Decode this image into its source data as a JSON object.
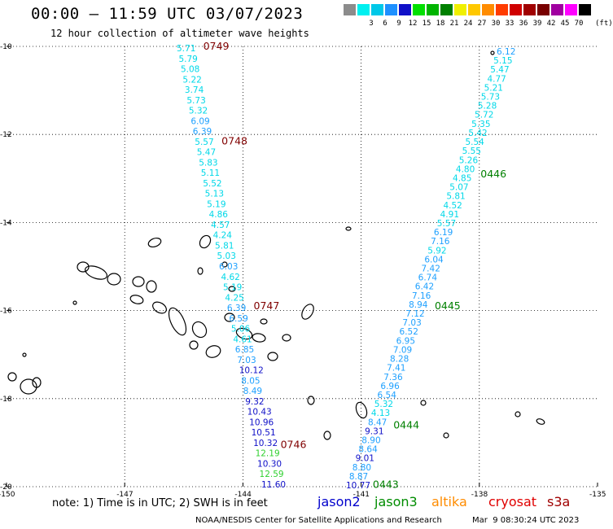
{
  "header": {
    "title": "00:00 – 11:59 UTC 03/07/2023",
    "subtitle": "12 hour collection of altimeter wave heights"
  },
  "color_scale": {
    "unit": "(ft)",
    "bins": [
      {
        "label": "",
        "color": "#8c8c8c"
      },
      {
        "label": "3",
        "color": "#00f0f0"
      },
      {
        "label": "6",
        "color": "#00c8e8"
      },
      {
        "label": "9",
        "color": "#1e90ff"
      },
      {
        "label": "12",
        "color": "#1010c8"
      },
      {
        "label": "15",
        "color": "#00e000"
      },
      {
        "label": "18",
        "color": "#00b400"
      },
      {
        "label": "21",
        "color": "#008000"
      },
      {
        "label": "24",
        "color": "#f0f000"
      },
      {
        "label": "27",
        "color": "#ffc800"
      },
      {
        "label": "30",
        "color": "#ff8c00"
      },
      {
        "label": "33",
        "color": "#ff3c00"
      },
      {
        "label": "36",
        "color": "#d00000"
      },
      {
        "label": "39",
        "color": "#a00000"
      },
      {
        "label": "42",
        "color": "#780000"
      },
      {
        "label": "45",
        "color": "#a000a0"
      },
      {
        "label": "70",
        "color": "#ff00ff"
      },
      {
        "label": "",
        "color": "#000000"
      }
    ]
  },
  "axes": {
    "lat_ticks": [
      "-10",
      "-12",
      "-14",
      "-16",
      "-18",
      "-20"
    ],
    "lon_ticks": [
      "-150",
      "-147",
      "-144",
      "-141",
      "-138",
      "-135"
    ]
  },
  "track_west": {
    "values": [
      "5.71",
      "5.79",
      "5.08",
      "5.22",
      "3.74",
      "5.73",
      "5.32",
      "6.09",
      "6.39",
      "5.57",
      "5.47",
      "5.83",
      "5.11",
      "5.52",
      "5.13",
      "5.19",
      "4.86",
      "4.57",
      "4.24",
      "5.81",
      "5.03",
      "6.03",
      "4.62",
      "5.19",
      "4.25",
      "6.39",
      "6.59",
      "5.06",
      "4.61",
      "6.85",
      "7.03",
      "10.12",
      "8.05",
      "8.49",
      "9.32",
      "10.43",
      "10.96",
      "10.51",
      "10.32",
      "12.19",
      "10.30",
      "12.59",
      "11.60"
    ],
    "passes": [
      "0749",
      "0748",
      "0747",
      "0746"
    ]
  },
  "track_east": {
    "values": [
      "6.12",
      "5.15",
      "5.47",
      "4.77",
      "5.21",
      "5.73",
      "5.28",
      "5.72",
      "5.35",
      "5.42",
      "5.54",
      "5.55",
      "5.26",
      "4.80",
      "4.85",
      "5.07",
      "5.81",
      "4.52",
      "4.91",
      "5.57",
      "6.19",
      "7.16",
      "5.92",
      "6.04",
      "7.42",
      "6.74",
      "6.42",
      "7.16",
      "8.94",
      "7.12",
      "7.03",
      "6.52",
      "6.95",
      "7.09",
      "8.28",
      "7.41",
      "7.36",
      "6.96",
      "6.54",
      "5.32",
      "4.13",
      "8.47",
      "9.31",
      "8.90",
      "8.64",
      "9.01",
      "8.80",
      "8.87",
      "10.77"
    ],
    "passes": [
      "0446",
      "0445",
      "0444",
      "0443"
    ]
  },
  "colors": {
    "pass_west": "#800000",
    "pass_east": "#008000",
    "jason2": "#0000cc",
    "jason3": "#008c00",
    "altika": "#ff8c00",
    "cryosat": "#e00000",
    "s3a": "#a00000"
  },
  "note": "note: 1) Time is in UTC; 2) SWH is in feet",
  "satellites": [
    "jason2",
    "jason3",
    "altika",
    "cryosat",
    "s3a"
  ],
  "footer": {
    "source": "NOAA/NESDIS Center for Satellite Applications and Research",
    "timestamp": "Mar  9 08:30:24 UTC 2023"
  }
}
